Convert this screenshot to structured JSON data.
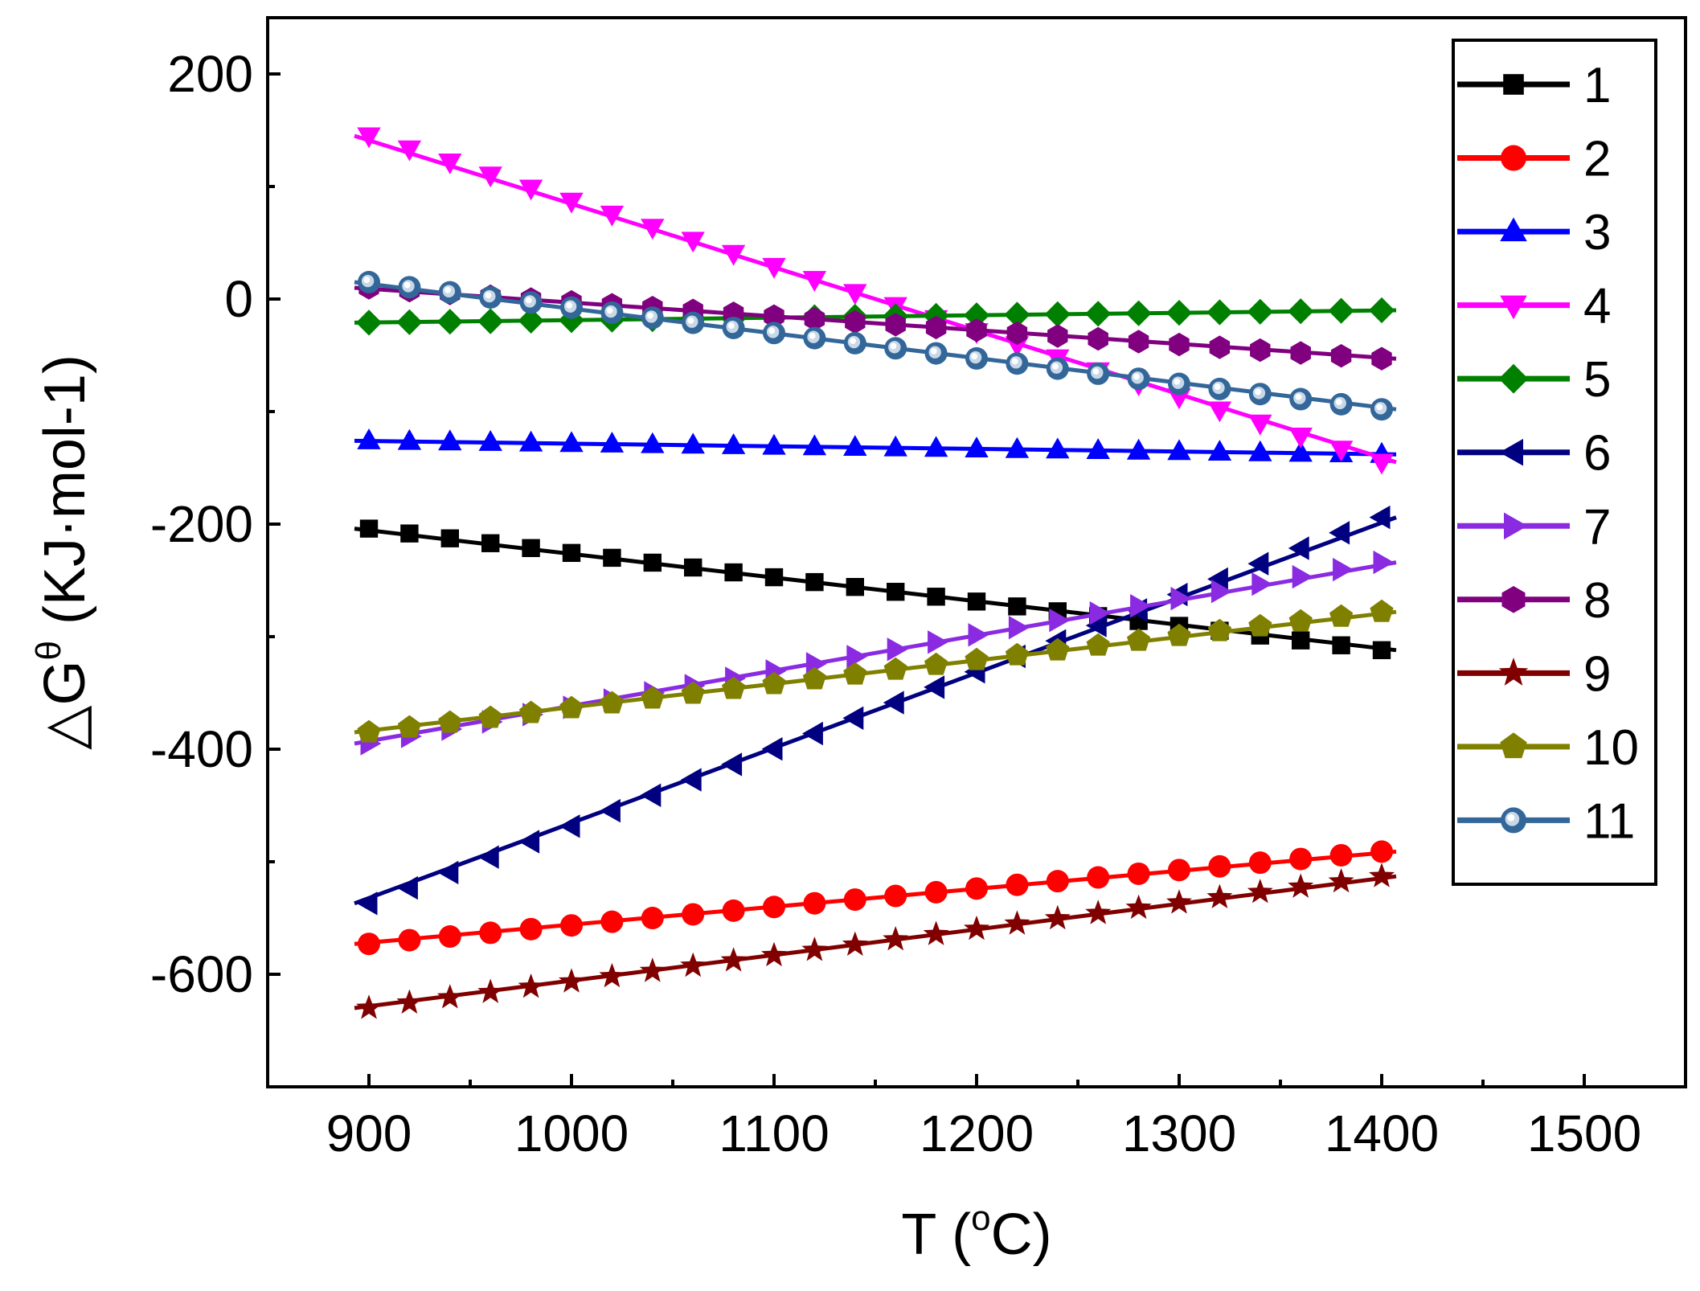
{
  "chart_data": {
    "type": "line",
    "xlabel": {
      "main": "T (",
      "sup": "o",
      "unit": "C)"
    },
    "ylabel": {
      "main": "△G",
      "sup": "θ",
      "unit": " (KJ·mol-1)"
    },
    "xlim": [
      850,
      1550
    ],
    "ylim": [
      -700,
      250
    ],
    "xticks": [
      900,
      1000,
      1100,
      1200,
      1300,
      1400,
      1500
    ],
    "xtick_labels": [
      "900",
      "1000",
      "1100",
      "1200",
      "1300",
      "1400",
      "1500"
    ],
    "yticks": [
      -600,
      -400,
      -200,
      0,
      200
    ],
    "ytick_labels": [
      "-600",
      "-400",
      "-200",
      "0",
      "200"
    ],
    "x": [
      900,
      920,
      940,
      960,
      980,
      1000,
      1020,
      1040,
      1060,
      1080,
      1100,
      1120,
      1140,
      1160,
      1180,
      1200,
      1220,
      1240,
      1260,
      1280,
      1300,
      1320,
      1340,
      1360,
      1380,
      1400
    ],
    "legend_position": "top-right",
    "series": [
      {
        "name": "1",
        "color": "#000000",
        "marker": "square",
        "start": -204,
        "end": -312
      },
      {
        "name": "2",
        "color": "#ff0000",
        "marker": "circle",
        "start": -573,
        "end": -491
      },
      {
        "name": "3",
        "color": "#0000ff",
        "marker": "triangle-up",
        "start": -126,
        "end": -138
      },
      {
        "name": "4",
        "color": "#ff00ff",
        "marker": "triangle-down",
        "start": 145,
        "end": -145
      },
      {
        "name": "5",
        "color": "#008000",
        "marker": "diamond",
        "start": -21,
        "end": -10
      },
      {
        "name": "6",
        "color": "#000080",
        "marker": "triangle-left",
        "start": -537,
        "end": -194
      },
      {
        "name": "7",
        "color": "#8a2be2",
        "marker": "triangle-right",
        "start": -395,
        "end": -234
      },
      {
        "name": "8",
        "color": "#800080",
        "marker": "hexagon",
        "start": 10,
        "end": -53
      },
      {
        "name": "9",
        "color": "#800000",
        "marker": "star",
        "start": -630,
        "end": -513
      },
      {
        "name": "10",
        "color": "#808000",
        "marker": "pentagon",
        "start": -385,
        "end": -278
      },
      {
        "name": "11",
        "color": "#336699",
        "marker": "sphere",
        "start": 15,
        "end": -98
      }
    ]
  }
}
